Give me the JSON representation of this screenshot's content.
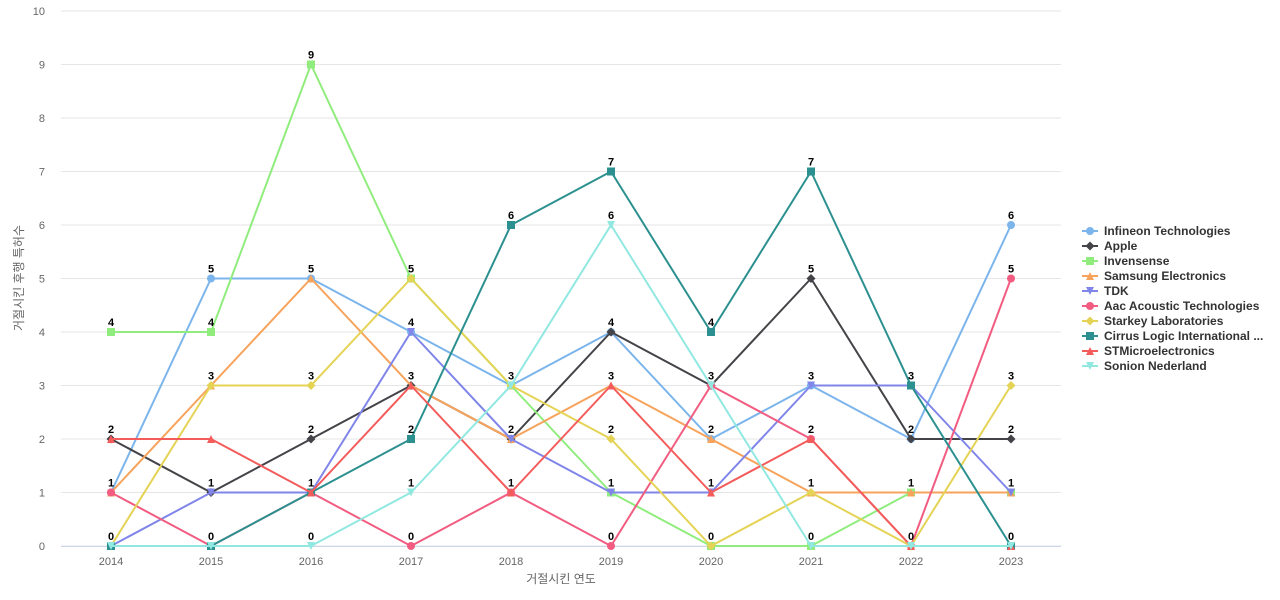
{
  "chart_data": {
    "type": "line",
    "title": "",
    "xlabel": "거절시킨 연도",
    "ylabel": "거절시킨 후행 특허수",
    "ylim": [
      0,
      10
    ],
    "yticks": [
      "0",
      "1",
      "2",
      "3",
      "4",
      "5",
      "6",
      "7",
      "8",
      "9",
      "10"
    ],
    "categories": [
      "2014",
      "2015",
      "2016",
      "2017",
      "2018",
      "2019",
      "2020",
      "2021",
      "2022",
      "2023"
    ],
    "series": [
      {
        "name": "Infineon Technologies",
        "color": "#7cb5ec",
        "marker": "circle",
        "values": [
          1,
          5,
          5,
          4,
          3,
          4,
          2,
          3,
          2,
          6
        ]
      },
      {
        "name": "Apple",
        "color": "#434348",
        "marker": "diamond",
        "values": [
          2,
          1,
          2,
          3,
          2,
          4,
          3,
          5,
          2,
          2
        ]
      },
      {
        "name": "Invensense",
        "color": "#90ed7d",
        "marker": "square",
        "values": [
          4,
          4,
          9,
          5,
          3,
          1,
          0,
          0,
          1,
          1
        ]
      },
      {
        "name": "Samsung Electronics",
        "color": "#f7a35c",
        "marker": "triangle",
        "values": [
          1,
          3,
          5,
          3,
          2,
          3,
          2,
          1,
          1,
          1
        ]
      },
      {
        "name": "TDK",
        "color": "#8085e9",
        "marker": "triangle-down",
        "values": [
          0,
          1,
          1,
          4,
          2,
          1,
          1,
          3,
          3,
          1
        ]
      },
      {
        "name": "Aac Acoustic Technologies",
        "color": "#f15c80",
        "marker": "circle",
        "values": [
          1,
          0,
          1,
          0,
          1,
          0,
          3,
          2,
          0,
          5
        ]
      },
      {
        "name": "Starkey Laboratories",
        "color": "#e4d354",
        "marker": "diamond",
        "values": [
          0,
          3,
          3,
          5,
          3,
          2,
          0,
          1,
          0,
          3
        ]
      },
      {
        "name": "Cirrus Logic International ...",
        "color": "#2b908f",
        "marker": "square",
        "values": [
          0,
          0,
          1,
          2,
          6,
          7,
          4,
          7,
          3,
          0
        ]
      },
      {
        "name": "STMicroelectronics",
        "color": "#f45b5b",
        "marker": "triangle",
        "values": [
          2,
          2,
          1,
          3,
          1,
          3,
          1,
          2,
          0,
          0
        ]
      },
      {
        "name": "Sonion Nederland",
        "color": "#91e8e1",
        "marker": "triangle-down",
        "values": [
          0,
          0,
          0,
          1,
          3,
          6,
          3,
          0,
          0,
          0
        ]
      }
    ],
    "data_labels": {
      "2014": [
        "4",
        "2",
        "1",
        "0"
      ],
      "2015": [
        "5",
        "4",
        "3",
        "1",
        "0"
      ],
      "2016": [
        "9",
        "5",
        "3",
        "2",
        "1",
        "0"
      ],
      "2017": [
        "5",
        "4",
        "3",
        "2",
        "1",
        "0"
      ],
      "2018": [
        "6",
        "3",
        "2",
        "1"
      ],
      "2019": [
        "7",
        "6",
        "4",
        "3",
        "2",
        "1",
        "0"
      ],
      "2020": [
        "4",
        "3",
        "2",
        "1",
        "0"
      ],
      "2021": [
        "7",
        "5",
        "3",
        "2",
        "1",
        "0"
      ],
      "2022": [
        "3",
        "2",
        "1",
        "0"
      ],
      "2023": [
        "6",
        "5",
        "3",
        "2",
        "1",
        "0"
      ]
    },
    "legend_position": "right"
  }
}
